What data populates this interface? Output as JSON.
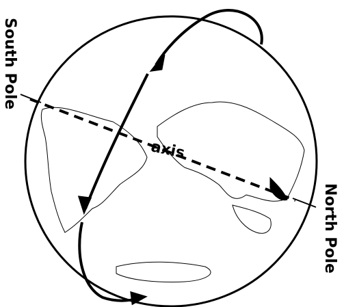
{
  "labels": {
    "south_pole": "South Pole",
    "north_pole": "North Pole",
    "axis": "axis"
  }
}
